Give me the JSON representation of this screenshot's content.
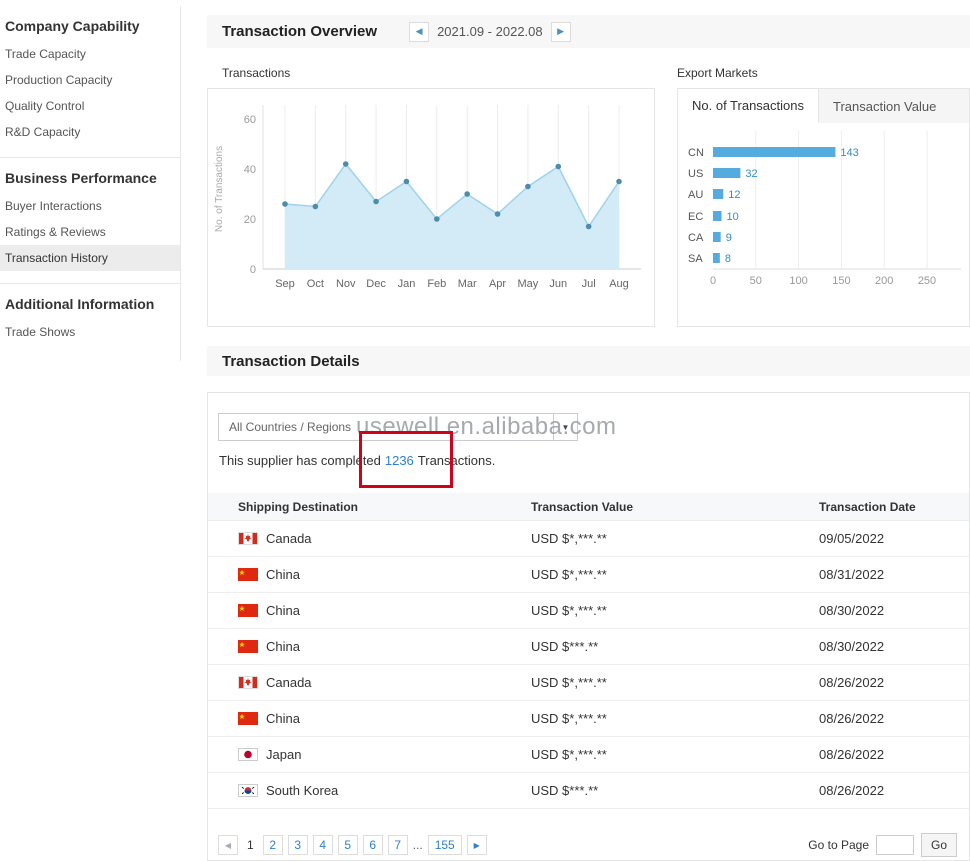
{
  "colors": {
    "accent_blue": "#2e8fcc",
    "bar_blue": "#55abde",
    "area_fill": "#d3eaf7",
    "area_line": "#9fd2ec",
    "dot": "#4d8cab",
    "annotation_red": "#d0021b",
    "link_blue": "#2e7fd0"
  },
  "sidebar": {
    "sections": [
      {
        "title": "Company Capability",
        "items": [
          {
            "label": "Trade Capacity",
            "active": false
          },
          {
            "label": "Production Capacity",
            "active": false
          },
          {
            "label": "Quality Control",
            "active": false
          },
          {
            "label": "R&D Capacity",
            "active": false
          }
        ]
      },
      {
        "title": "Business Performance",
        "items": [
          {
            "label": "Buyer Interactions",
            "active": false
          },
          {
            "label": "Ratings & Reviews",
            "active": false
          },
          {
            "label": "Transaction History",
            "active": true
          }
        ]
      },
      {
        "title": "Additional Information",
        "items": [
          {
            "label": "Trade Shows",
            "active": false
          }
        ]
      }
    ]
  },
  "overview": {
    "title": "Transaction Overview",
    "date_range": "2021.09 - 2022.08",
    "prev_icon": "◀",
    "next_icon": "▶",
    "transactions_label": "Transactions",
    "export_markets_label": "Export Markets",
    "tabs": [
      {
        "label": "No. of Transactions",
        "active": true
      },
      {
        "label": "Transaction Value",
        "active": false
      }
    ]
  },
  "chart_data": [
    {
      "type": "area",
      "title": "Transactions",
      "x": [
        "Sep",
        "Oct",
        "Nov",
        "Dec",
        "Jan",
        "Feb",
        "Mar",
        "Apr",
        "May",
        "Jun",
        "Jul",
        "Aug"
      ],
      "values": [
        26,
        25,
        42,
        27,
        35,
        20,
        30,
        22,
        33,
        41,
        17,
        35
      ],
      "ylabel": "No. of Transactions",
      "ylim": [
        0,
        60
      ],
      "yticks": [
        0,
        20,
        40,
        60
      ],
      "grid": "vertical"
    },
    {
      "type": "bar",
      "orientation": "horizontal",
      "title": "No. of Transactions",
      "categories": [
        "CN",
        "US",
        "AU",
        "EC",
        "CA",
        "SA"
      ],
      "values": [
        143,
        32,
        12,
        10,
        9,
        8
      ],
      "xlim": [
        0,
        250
      ],
      "xticks": [
        0,
        50,
        100,
        150,
        200,
        250
      ],
      "grid": "vertical"
    }
  ],
  "details": {
    "title": "Transaction Details",
    "filter_value": "All Countries / Regions",
    "dropdown_arrow_icon": "▼",
    "watermark": "usewell.en.alibaba.com",
    "summary": {
      "prefix": "This supplier has completed",
      "count": "1236",
      "suffix": "Transactions."
    },
    "table": {
      "headers": [
        "Shipping Destination",
        "Transaction Value",
        "Transaction Date"
      ],
      "rows": [
        {
          "flag": "canada",
          "country": "Canada",
          "value": "USD $*,***.**",
          "date": "09/05/2022"
        },
        {
          "flag": "china",
          "country": "China",
          "value": "USD $*,***.**",
          "date": "08/31/2022"
        },
        {
          "flag": "china",
          "country": "China",
          "value": "USD $*,***.**",
          "date": "08/30/2022"
        },
        {
          "flag": "china",
          "country": "China",
          "value": "USD $***.**",
          "date": "08/30/2022"
        },
        {
          "flag": "canada",
          "country": "Canada",
          "value": "USD $*,***.**",
          "date": "08/26/2022"
        },
        {
          "flag": "china",
          "country": "China",
          "value": "USD $*,***.**",
          "date": "08/26/2022"
        },
        {
          "flag": "japan",
          "country": "Japan",
          "value": "USD $*,***.**",
          "date": "08/26/2022"
        },
        {
          "flag": "south-korea",
          "country": "South Korea",
          "value": "USD $***.**",
          "date": "08/26/2022"
        }
      ]
    },
    "pagination": {
      "prev_icon": "◀",
      "next_icon": "▶",
      "current": "1",
      "pages": [
        "2",
        "3",
        "4",
        "5",
        "6",
        "7"
      ],
      "ellipsis": "...",
      "last_page": "155",
      "goto_label": "Go to Page",
      "go_label": "Go"
    }
  }
}
